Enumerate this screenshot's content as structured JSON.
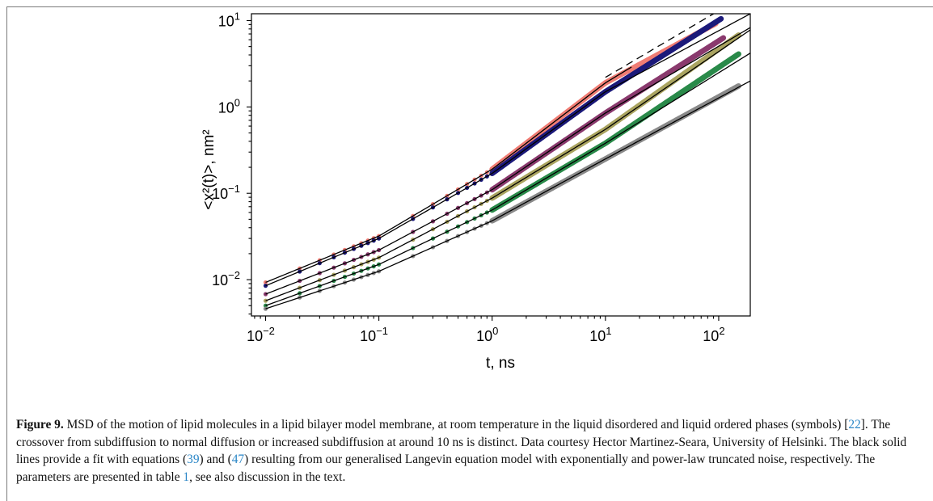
{
  "chart_data": {
    "type": "scatter",
    "title": "",
    "xlabel": "t, ns",
    "ylabel": "<x²(t)>, nm²",
    "x_scale": "log",
    "y_scale": "log",
    "xlim": [
      0.0075,
      190
    ],
    "ylim": [
      0.0038,
      12
    ],
    "x_ticks": [
      0.01,
      0.1,
      1,
      10,
      100
    ],
    "x_tick_labels": [
      {
        "base": "10",
        "exp": "−2"
      },
      {
        "base": "10",
        "exp": "−1"
      },
      {
        "base": "10",
        "exp": "0"
      },
      {
        "base": "10",
        "exp": "1"
      },
      {
        "base": "10",
        "exp": "2"
      }
    ],
    "y_ticks": [
      0.01,
      0.1,
      1,
      10
    ],
    "y_tick_labels": [
      {
        "base": "10",
        "exp": "−2"
      },
      {
        "base": "10",
        "exp": "−1"
      },
      {
        "base": "10",
        "exp": "0"
      },
      {
        "base": "10",
        "exp": "1"
      }
    ],
    "grid": false,
    "legend": "none",
    "series": [
      {
        "color": "#f07d74",
        "t_max": 95,
        "x": [
          0.01,
          0.1,
          1,
          10,
          95
        ],
        "y": [
          0.0093,
          0.032,
          0.19,
          1.9,
          9.3
        ]
      },
      {
        "color": "#1c1a7a",
        "t_max": 105,
        "x": [
          0.01,
          0.1,
          1,
          10,
          105
        ],
        "y": [
          0.0085,
          0.03,
          0.17,
          1.5,
          10.5
        ]
      },
      {
        "color": "#8a3a6e",
        "t_max": 110,
        "x": [
          0.01,
          0.1,
          1,
          10,
          110
        ],
        "y": [
          0.0068,
          0.022,
          0.11,
          0.85,
          6.3
        ]
      },
      {
        "color": "#aaa460",
        "t_max": 150,
        "x": [
          0.01,
          0.1,
          1,
          10,
          150
        ],
        "y": [
          0.0057,
          0.018,
          0.088,
          0.55,
          6.8
        ]
      },
      {
        "color": "#2a8a4a",
        "t_max": 150,
        "x": [
          0.01,
          0.1,
          1,
          10,
          150
        ],
        "y": [
          0.005,
          0.015,
          0.064,
          0.38,
          4.1
        ]
      },
      {
        "color": "#8a8a8a",
        "t_max": 150,
        "x": [
          0.01,
          0.1,
          1,
          10,
          150
        ],
        "y": [
          0.0046,
          0.0125,
          0.048,
          0.25,
          1.75
        ]
      }
    ],
    "fit_lines": [
      {
        "style": "solid",
        "x": [
          0.01,
          0.1,
          1,
          10,
          17
        ],
        "y": [
          0.0093,
          0.032,
          0.19,
          1.9,
          2.9
        ]
      },
      {
        "style": "dashed",
        "x": [
          10,
          100
        ],
        "y": [
          2.2,
          13
        ]
      },
      {
        "style": "solid",
        "x": [
          0.01,
          0.1,
          1,
          10,
          190
        ],
        "y": [
          0.0085,
          0.03,
          0.17,
          1.5,
          12
        ]
      },
      {
        "style": "solid",
        "x": [
          0.01,
          0.1,
          1,
          10,
          190
        ],
        "y": [
          0.0068,
          0.022,
          0.11,
          0.85,
          8.3
        ]
      },
      {
        "style": "solid",
        "x": [
          0.01,
          0.1,
          1,
          10,
          190
        ],
        "y": [
          0.0057,
          0.018,
          0.088,
          0.55,
          7.8
        ]
      },
      {
        "style": "solid",
        "x": [
          0.01,
          0.1,
          1,
          10,
          190
        ],
        "y": [
          0.005,
          0.015,
          0.064,
          0.38,
          4.2
        ]
      },
      {
        "style": "solid",
        "x": [
          0.01,
          0.1,
          1,
          10,
          190
        ],
        "y": [
          0.0046,
          0.0125,
          0.048,
          0.25,
          2.0
        ]
      }
    ]
  },
  "caption": {
    "label": "Figure 9.",
    "text_1": " MSD of the motion of lipid molecules in a lipid bilayer model membrane, at room temperature in the liquid disordered and liquid ordered phases (symbols) [",
    "ref_1": "22",
    "text_2": "]. The crossover from subdiffusion to normal diffusion or increased subdiffusion at around 10 ns is distinct. Data courtesy Hector Martinez-Seara, University of Helsinki. The black solid lines provide a fit with equations (",
    "ref_2": "39",
    "text_3": ") and (",
    "ref_3": "47",
    "text_4": ") resulting from our generalised Langevin equation model with exponentially and power-law truncated noise, respectively. The parameters are presented in table ",
    "ref_4": "1",
    "text_5": ", see also discussion in the text."
  }
}
